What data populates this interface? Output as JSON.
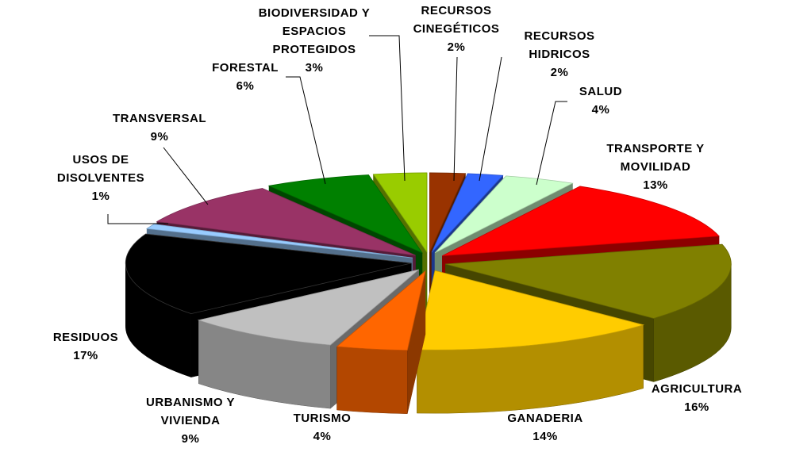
{
  "chart_data": {
    "type": "pie",
    "title": "",
    "slices": [
      {
        "label": [
          "RECURSOS",
          "CINEGÉTICOS"
        ],
        "pct": "2%",
        "value": 2,
        "color": "#993300"
      },
      {
        "label": [
          "RECURSOS",
          "HIDRICOS"
        ],
        "pct": "2%",
        "value": 2,
        "color": "#3366ff"
      },
      {
        "label": [
          "SALUD"
        ],
        "pct": "4%",
        "value": 4,
        "color": "#ccffcc"
      },
      {
        "label": [
          "TRANSPORTE Y",
          "MOVILIDAD"
        ],
        "pct": "13%",
        "value": 13,
        "color": "#ff0000"
      },
      {
        "label": [
          "AGRICULTURA"
        ],
        "pct": "16%",
        "value": 16,
        "color": "#808000"
      },
      {
        "label": [
          "GANADERIA"
        ],
        "pct": "14%",
        "value": 14,
        "color": "#ffcc00"
      },
      {
        "label": [
          "TURISMO"
        ],
        "pct": "4%",
        "value": 4,
        "color": "#ff6600"
      },
      {
        "label": [
          "URBANISMO Y",
          "VIVIENDA"
        ],
        "pct": "9%",
        "value": 9,
        "color": "#c0c0c0"
      },
      {
        "label": [
          "RESIDUOS"
        ],
        "pct": "17%",
        "value": 17,
        "color": "#000000"
      },
      {
        "label": [
          "USOS DE",
          "DISOLVENTES"
        ],
        "pct": "1%",
        "value": 1,
        "color": "#99ccff"
      },
      {
        "label": [
          "TRANSVERSAL"
        ],
        "pct": "9%",
        "value": 9,
        "color": "#993366"
      },
      {
        "label": [
          "FORESTAL"
        ],
        "pct": "6%",
        "value": 6,
        "color": "#008000"
      },
      {
        "label": [
          "BIODIVERSIDAD Y",
          "ESPACIOS",
          "PROTEGIDOS"
        ],
        "pct": "3%",
        "value": 3,
        "color": "#99cc00"
      }
    ]
  }
}
